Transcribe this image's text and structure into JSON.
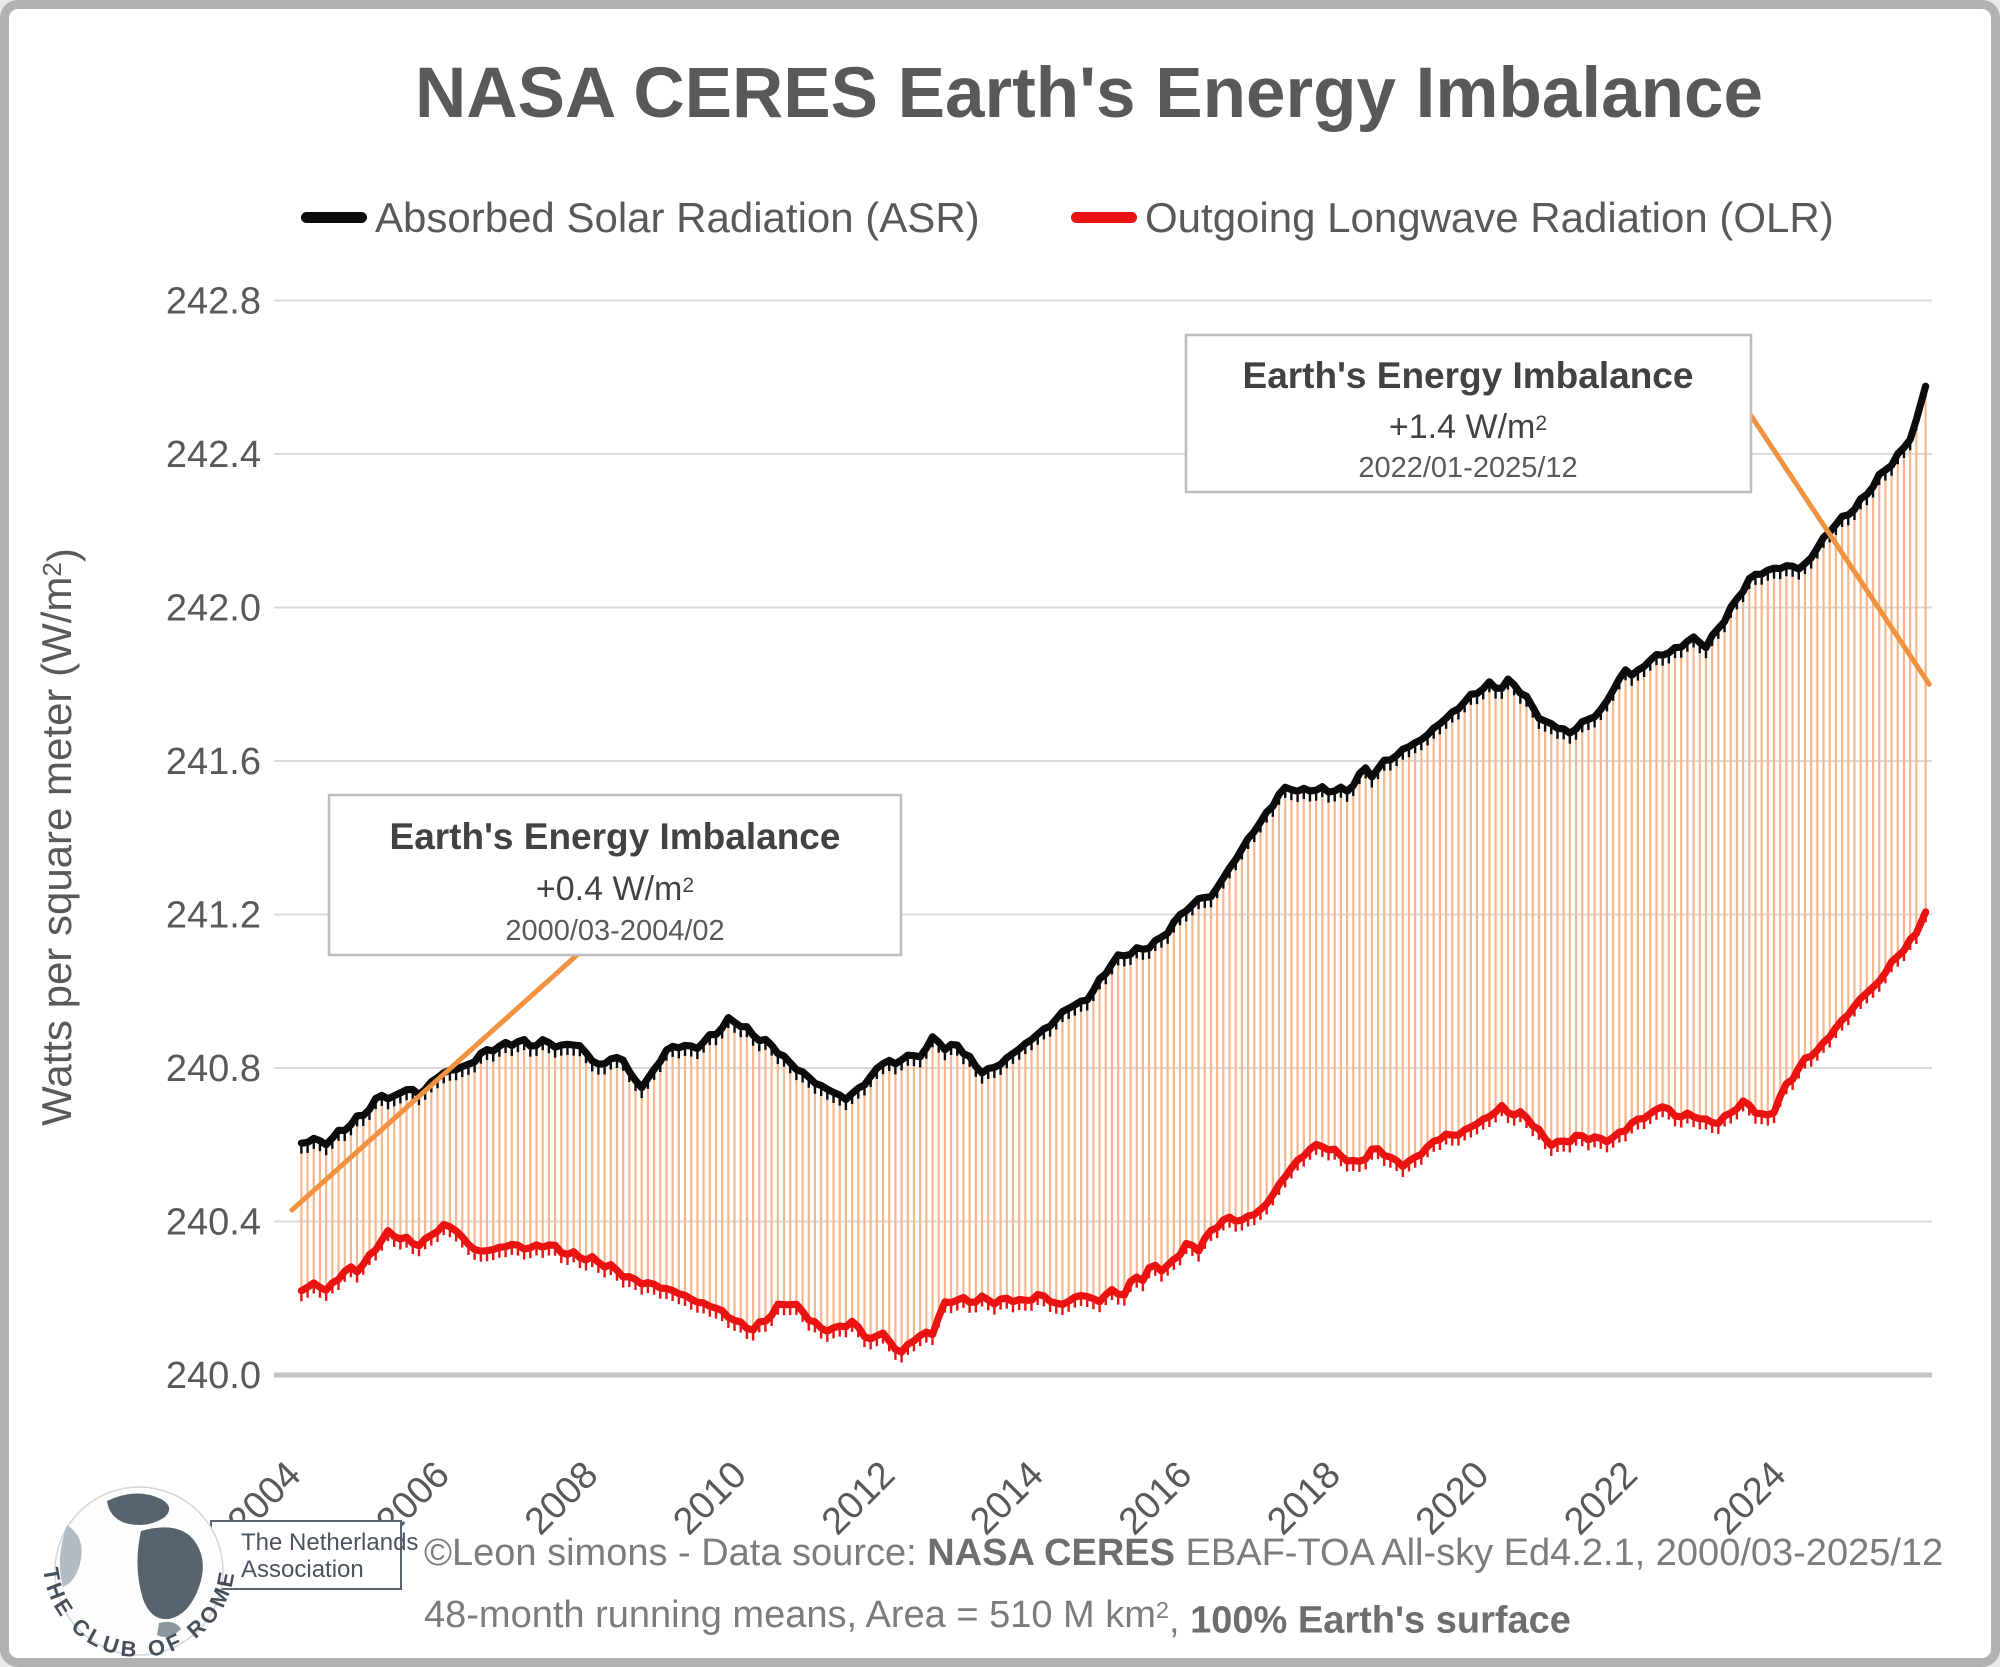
{
  "title": "NASA CERES Earth's Energy Imbalance",
  "legend": [
    {
      "label": "Absorbed Solar Radiation (ASR)",
      "color": "#0c0c0c"
    },
    {
      "label": "Outgoing Longwave Radiation (OLR)",
      "color": "#eb1212"
    }
  ],
  "annotations": [
    {
      "title": "Earth's Energy Imbalance",
      "value": "+0.4 W/m²",
      "period": "2000/03-2004/02"
    },
    {
      "title": "Earth's Energy Imbalance",
      "value": "+1.4 W/m²",
      "period": "2022/01-2025/12"
    }
  ],
  "footer": {
    "logo_text": "THE CLUB OF ROME",
    "org_line1": "The Netherlands",
    "org_line2": "Association",
    "line1": {
      "pre": "©Leon simons - Data source: ",
      "bold": "NASA CERES",
      "post": " EBAF-TOA All-sky Ed4.2.1, 2000/03-2025/12"
    },
    "line2": {
      "pre": "48-month running means, Area = 510 M km², ",
      "bold": "100% Earth's surface"
    }
  },
  "chart_data": {
    "type": "line",
    "title": "NASA CERES Earth's Energy Imbalance",
    "x_axis": {
      "ticks": [
        2004,
        2006,
        2008,
        2010,
        2012,
        2014,
        2016,
        2018,
        2020,
        2022,
        2024
      ],
      "range": [
        2004,
        2026.3
      ]
    },
    "y_axis": {
      "label": "Watts per square meter (W/m²)",
      "ticks": [
        "240.0",
        "240.4",
        "240.8",
        "241.2",
        "241.6",
        "242.0",
        "242.4",
        "242.8"
      ],
      "range": [
        240.0,
        242.8
      ],
      "grid": true
    },
    "band": {
      "color": "#f6b78c",
      "description": "vertical hatch fill between OLR and ASR = Earth's Energy Imbalance"
    },
    "trend_lines": [
      {
        "name": "eei-trend-2000-2004",
        "color": "#f0923f",
        "from": [
          2004.04,
          240.43
        ],
        "to": [
          2008.2,
          241.15
        ]
      },
      {
        "name": "eei-trend-2022-2025",
        "color": "#f0923f",
        "from": [
          2023.69,
          242.5
        ],
        "to": [
          2026.09,
          241.8
        ]
      }
    ],
    "series": [
      {
        "name": "Absorbed Solar Radiation (ASR)",
        "color": "#0c0c0c",
        "points": [
          [
            2004.17,
            240.6
          ],
          [
            2004.3,
            240.62
          ],
          [
            2004.45,
            240.6
          ],
          [
            2004.6,
            240.62
          ],
          [
            2004.8,
            240.65
          ],
          [
            2005.0,
            240.68
          ],
          [
            2005.25,
            240.73
          ],
          [
            2005.4,
            240.72
          ],
          [
            2005.6,
            240.75
          ],
          [
            2005.75,
            240.73
          ],
          [
            2005.9,
            240.76
          ],
          [
            2006.1,
            240.79
          ],
          [
            2006.3,
            240.8
          ],
          [
            2006.45,
            240.81
          ],
          [
            2006.6,
            240.84
          ],
          [
            2006.9,
            240.86
          ],
          [
            2007.1,
            240.87
          ],
          [
            2007.3,
            240.86
          ],
          [
            2007.5,
            240.87
          ],
          [
            2007.65,
            240.85
          ],
          [
            2007.8,
            240.87
          ],
          [
            2008.0,
            240.84
          ],
          [
            2008.2,
            240.8
          ],
          [
            2008.35,
            240.83
          ],
          [
            2008.5,
            240.82
          ],
          [
            2008.65,
            240.77
          ],
          [
            2008.75,
            240.75
          ],
          [
            2008.9,
            240.79
          ],
          [
            2009.1,
            240.85
          ],
          [
            2009.3,
            240.86
          ],
          [
            2009.45,
            240.85
          ],
          [
            2009.6,
            240.87
          ],
          [
            2009.8,
            240.9
          ],
          [
            2009.95,
            240.93
          ],
          [
            2010.1,
            240.91
          ],
          [
            2010.3,
            240.88
          ],
          [
            2010.5,
            240.86
          ],
          [
            2010.7,
            240.82
          ],
          [
            2010.9,
            240.79
          ],
          [
            2011.1,
            240.76
          ],
          [
            2011.3,
            240.74
          ],
          [
            2011.5,
            240.72
          ],
          [
            2011.7,
            240.75
          ],
          [
            2011.9,
            240.79
          ],
          [
            2012.05,
            240.83
          ],
          [
            2012.15,
            240.8
          ],
          [
            2012.3,
            240.84
          ],
          [
            2012.45,
            240.82
          ],
          [
            2012.6,
            240.86
          ],
          [
            2012.7,
            240.88
          ],
          [
            2012.85,
            240.85
          ],
          [
            2013.0,
            240.86
          ],
          [
            2013.15,
            240.83
          ],
          [
            2013.3,
            240.79
          ],
          [
            2013.5,
            240.8
          ],
          [
            2013.7,
            240.83
          ],
          [
            2013.9,
            240.86
          ],
          [
            2014.1,
            240.89
          ],
          [
            2014.3,
            240.92
          ],
          [
            2014.5,
            240.96
          ],
          [
            2014.7,
            240.97
          ],
          [
            2014.9,
            241.02
          ],
          [
            2015.1,
            241.08
          ],
          [
            2015.3,
            241.1
          ],
          [
            2015.5,
            241.11
          ],
          [
            2015.7,
            241.13
          ],
          [
            2015.85,
            241.16
          ],
          [
            2016.05,
            241.21
          ],
          [
            2016.15,
            241.22
          ],
          [
            2016.3,
            241.25
          ],
          [
            2016.4,
            241.24
          ],
          [
            2016.6,
            241.3
          ],
          [
            2016.8,
            241.36
          ],
          [
            2017.0,
            241.42
          ],
          [
            2017.2,
            241.47
          ],
          [
            2017.35,
            241.52
          ],
          [
            2017.5,
            241.53
          ],
          [
            2017.65,
            241.52
          ],
          [
            2017.85,
            241.53
          ],
          [
            2018.0,
            241.52
          ],
          [
            2018.1,
            241.53
          ],
          [
            2018.25,
            241.52
          ],
          [
            2018.4,
            241.56
          ],
          [
            2018.5,
            241.58
          ],
          [
            2018.6,
            241.56
          ],
          [
            2018.75,
            241.6
          ],
          [
            2018.9,
            241.61
          ],
          [
            2019.0,
            241.63
          ],
          [
            2019.2,
            241.65
          ],
          [
            2019.35,
            241.67
          ],
          [
            2019.5,
            241.7
          ],
          [
            2019.65,
            241.72
          ],
          [
            2019.8,
            241.75
          ],
          [
            2020.0,
            241.78
          ],
          [
            2020.15,
            241.8
          ],
          [
            2020.3,
            241.79
          ],
          [
            2020.45,
            241.81
          ],
          [
            2020.6,
            241.78
          ],
          [
            2020.75,
            241.74
          ],
          [
            2020.9,
            241.7
          ],
          [
            2021.1,
            241.69
          ],
          [
            2021.25,
            241.67
          ],
          [
            2021.4,
            241.7
          ],
          [
            2021.55,
            241.71
          ],
          [
            2021.7,
            241.74
          ],
          [
            2021.85,
            241.79
          ],
          [
            2022.0,
            241.84
          ],
          [
            2022.1,
            241.82
          ],
          [
            2022.3,
            241.86
          ],
          [
            2022.5,
            241.88
          ],
          [
            2022.7,
            241.89
          ],
          [
            2022.85,
            241.92
          ],
          [
            2023.0,
            241.91
          ],
          [
            2023.1,
            241.9
          ],
          [
            2023.3,
            241.96
          ],
          [
            2023.5,
            242.02
          ],
          [
            2023.65,
            242.07
          ],
          [
            2023.8,
            242.09
          ],
          [
            2024.0,
            242.1
          ],
          [
            2024.2,
            242.11
          ],
          [
            2024.35,
            242.1
          ],
          [
            2024.5,
            242.13
          ],
          [
            2024.7,
            242.19
          ],
          [
            2024.9,
            242.23
          ],
          [
            2025.1,
            242.26
          ],
          [
            2025.3,
            242.31
          ],
          [
            2025.5,
            242.36
          ],
          [
            2025.7,
            242.4
          ],
          [
            2025.85,
            242.45
          ],
          [
            2025.95,
            242.5
          ],
          [
            2026.04,
            242.58
          ]
        ]
      },
      {
        "name": "Outgoing Longwave Radiation (OLR)",
        "color": "#eb1212",
        "points": [
          [
            2004.17,
            240.22
          ],
          [
            2004.35,
            240.24
          ],
          [
            2004.5,
            240.22
          ],
          [
            2004.8,
            240.28
          ],
          [
            2004.9,
            240.27
          ],
          [
            2005.1,
            240.31
          ],
          [
            2005.3,
            240.37
          ],
          [
            2005.5,
            240.36
          ],
          [
            2005.7,
            240.34
          ],
          [
            2005.85,
            240.35
          ],
          [
            2006.05,
            240.39
          ],
          [
            2006.25,
            240.38
          ],
          [
            2006.4,
            240.34
          ],
          [
            2006.6,
            240.32
          ],
          [
            2006.8,
            240.33
          ],
          [
            2007.0,
            240.34
          ],
          [
            2007.2,
            240.33
          ],
          [
            2007.5,
            240.34
          ],
          [
            2007.7,
            240.32
          ],
          [
            2007.9,
            240.31
          ],
          [
            2008.1,
            240.3
          ],
          [
            2008.35,
            240.28
          ],
          [
            2008.6,
            240.25
          ],
          [
            2008.8,
            240.24
          ],
          [
            2009.0,
            240.23
          ],
          [
            2009.3,
            240.21
          ],
          [
            2009.5,
            240.19
          ],
          [
            2009.7,
            240.18
          ],
          [
            2009.95,
            240.15
          ],
          [
            2010.1,
            240.13
          ],
          [
            2010.25,
            240.12
          ],
          [
            2010.4,
            240.14
          ],
          [
            2010.6,
            240.18
          ],
          [
            2010.75,
            240.19
          ],
          [
            2010.95,
            240.16
          ],
          [
            2011.15,
            240.12
          ],
          [
            2011.35,
            240.12
          ],
          [
            2011.5,
            240.13
          ],
          [
            2011.6,
            240.14
          ],
          [
            2011.8,
            240.09
          ],
          [
            2012.0,
            240.11
          ],
          [
            2012.15,
            240.07
          ],
          [
            2012.25,
            240.06
          ],
          [
            2012.4,
            240.09
          ],
          [
            2012.55,
            240.11
          ],
          [
            2012.65,
            240.1
          ],
          [
            2012.8,
            240.18
          ],
          [
            2013.0,
            240.2
          ],
          [
            2013.15,
            240.19
          ],
          [
            2013.3,
            240.2
          ],
          [
            2013.55,
            240.19
          ],
          [
            2013.7,
            240.2
          ],
          [
            2013.9,
            240.19
          ],
          [
            2014.1,
            240.21
          ],
          [
            2014.3,
            240.19
          ],
          [
            2014.4,
            240.18
          ],
          [
            2014.55,
            240.2
          ],
          [
            2014.7,
            240.21
          ],
          [
            2014.9,
            240.19
          ],
          [
            2015.05,
            240.22
          ],
          [
            2015.25,
            240.21
          ],
          [
            2015.4,
            240.26
          ],
          [
            2015.5,
            240.25
          ],
          [
            2015.65,
            240.29
          ],
          [
            2015.8,
            240.27
          ],
          [
            2015.95,
            240.31
          ],
          [
            2016.1,
            240.34
          ],
          [
            2016.25,
            240.33
          ],
          [
            2016.4,
            240.37
          ],
          [
            2016.55,
            240.4
          ],
          [
            2016.7,
            240.41
          ],
          [
            2016.8,
            240.4
          ],
          [
            2017.0,
            240.42
          ],
          [
            2017.15,
            240.44
          ],
          [
            2017.35,
            240.5
          ],
          [
            2017.5,
            240.54
          ],
          [
            2017.6,
            240.56
          ],
          [
            2017.75,
            240.59
          ],
          [
            2017.9,
            240.6
          ],
          [
            2018.0,
            240.59
          ],
          [
            2018.2,
            240.57
          ],
          [
            2018.35,
            240.55
          ],
          [
            2018.45,
            240.56
          ],
          [
            2018.55,
            240.58
          ],
          [
            2018.7,
            240.59
          ],
          [
            2018.85,
            240.56
          ],
          [
            2019.0,
            240.55
          ],
          [
            2019.15,
            240.56
          ],
          [
            2019.3,
            240.59
          ],
          [
            2019.45,
            240.61
          ],
          [
            2019.6,
            240.63
          ],
          [
            2019.7,
            240.62
          ],
          [
            2019.85,
            240.64
          ],
          [
            2020.05,
            240.66
          ],
          [
            2020.2,
            240.68
          ],
          [
            2020.35,
            240.7
          ],
          [
            2020.45,
            240.68
          ],
          [
            2020.6,
            240.68
          ],
          [
            2020.7,
            240.67
          ],
          [
            2020.8,
            240.64
          ],
          [
            2020.95,
            240.61
          ],
          [
            2021.05,
            240.6
          ],
          [
            2021.2,
            240.61
          ],
          [
            2021.3,
            240.62
          ],
          [
            2021.45,
            240.62
          ],
          [
            2021.55,
            240.62
          ],
          [
            2021.7,
            240.61
          ],
          [
            2021.85,
            240.62
          ],
          [
            2022.0,
            240.64
          ],
          [
            2022.1,
            240.66
          ],
          [
            2022.25,
            240.67
          ],
          [
            2022.4,
            240.69
          ],
          [
            2022.5,
            240.7
          ],
          [
            2022.6,
            240.69
          ],
          [
            2022.7,
            240.67
          ],
          [
            2022.85,
            240.68
          ],
          [
            2023.0,
            240.67
          ],
          [
            2023.1,
            240.66
          ],
          [
            2023.25,
            240.66
          ],
          [
            2023.35,
            240.67
          ],
          [
            2023.45,
            240.69
          ],
          [
            2023.55,
            240.71
          ],
          [
            2023.7,
            240.7
          ],
          [
            2023.8,
            240.68
          ],
          [
            2023.88,
            240.67
          ],
          [
            2023.97,
            240.68
          ],
          [
            2024.05,
            240.71
          ],
          [
            2024.15,
            240.75
          ],
          [
            2024.3,
            240.79
          ],
          [
            2024.45,
            240.83
          ],
          [
            2024.55,
            240.84
          ],
          [
            2024.7,
            240.87
          ],
          [
            2024.85,
            240.91
          ],
          [
            2025.0,
            240.94
          ],
          [
            2025.2,
            240.99
          ],
          [
            2025.35,
            241.01
          ],
          [
            2025.5,
            241.05
          ],
          [
            2025.65,
            241.09
          ],
          [
            2025.8,
            241.12
          ],
          [
            2025.95,
            241.16
          ],
          [
            2026.0,
            241.19
          ],
          [
            2026.04,
            241.21
          ]
        ]
      }
    ]
  }
}
